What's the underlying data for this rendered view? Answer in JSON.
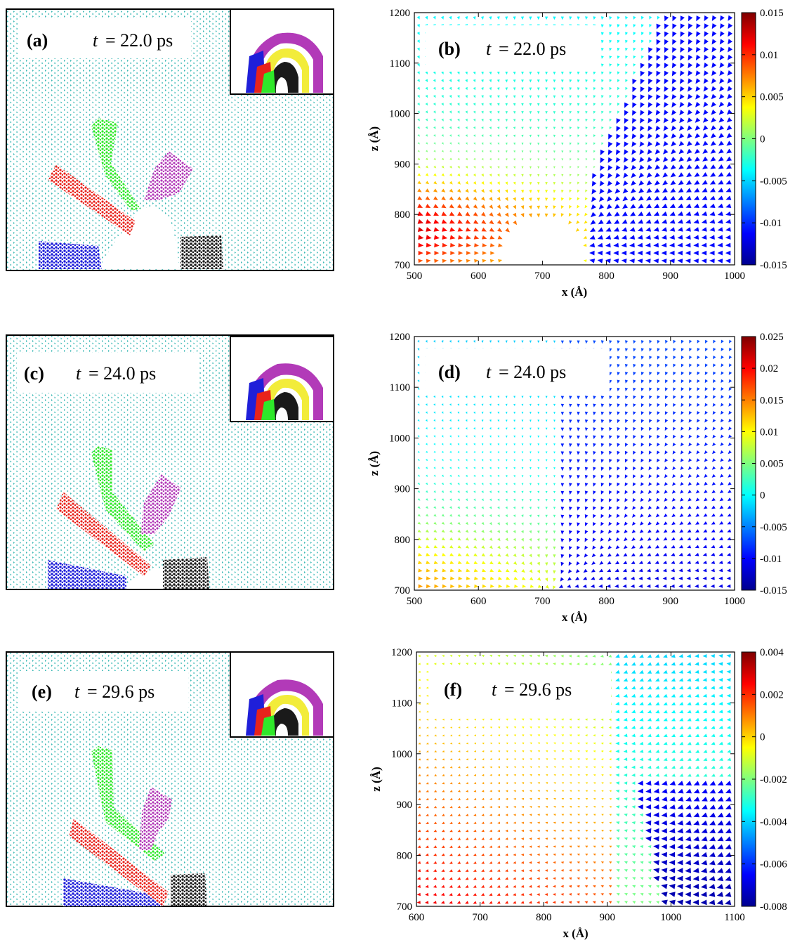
{
  "chart_data": [
    {
      "type": "scatter",
      "panel": "(a)",
      "t_label": "t",
      "t_value": "= 22.0 ps",
      "description_layers": [
        "cyan",
        "red",
        "green",
        "magenta",
        "blue",
        "black"
      ],
      "inset": true
    },
    {
      "type": "quiver",
      "panel": "(b)",
      "t_label": "t",
      "t_value": "= 22.0 ps",
      "xlabel": "x (Å)",
      "ylabel": "z (Å)",
      "xlim": [
        500,
        1000
      ],
      "ylim": [
        700,
        1200
      ],
      "xticks": [
        "500",
        "600",
        "700",
        "800",
        "900",
        "1000"
      ],
      "yticks": [
        "700",
        "800",
        "900",
        "1000",
        "1100",
        "1200"
      ],
      "colorbar": {
        "min": -0.015,
        "max": 0.015,
        "ticks": [
          "0.015",
          "0.01",
          "0.005",
          "0",
          "-0.005",
          "-0.01",
          "-0.015"
        ]
      }
    },
    {
      "type": "scatter",
      "panel": "(c)",
      "t_label": "t",
      "t_value": "= 24.0 ps",
      "inset": true
    },
    {
      "type": "quiver",
      "panel": "(d)",
      "t_label": "t",
      "t_value": "= 24.0 ps",
      "xlabel": "x (Å)",
      "ylabel": "z (Å)",
      "xlim": [
        500,
        1000
      ],
      "ylim": [
        700,
        1200
      ],
      "xticks": [
        "500",
        "600",
        "700",
        "800",
        "900",
        "1000"
      ],
      "yticks": [
        "700",
        "800",
        "900",
        "1000",
        "1100",
        "1200"
      ],
      "colorbar": {
        "min": -0.015,
        "max": 0.025,
        "ticks": [
          "0.025",
          "0.02",
          "0.015",
          "0.01",
          "0.005",
          "0",
          "-0.005",
          "-0.01",
          "-0.015"
        ]
      }
    },
    {
      "type": "scatter",
      "panel": "(e)",
      "t_label": "t",
      "t_value": "= 29.6 ps",
      "inset": true
    },
    {
      "type": "quiver",
      "panel": "(f)",
      "t_label": "t",
      "t_value": "= 29.6 ps",
      "xlabel": "x (Å)",
      "ylabel": "z (Å)",
      "xlim": [
        600,
        1100
      ],
      "ylim": [
        700,
        1200
      ],
      "xticks": [
        "600",
        "700",
        "800",
        "900",
        "1000",
        "1100"
      ],
      "yticks": [
        "700",
        "800",
        "900",
        "1000",
        "1100",
        "1200"
      ],
      "colorbar": {
        "min": -0.008,
        "max": 0.004,
        "ticks": [
          "0.004",
          "0.002",
          "0",
          "-0.002",
          "-0.004",
          "-0.006",
          "-0.008"
        ]
      }
    }
  ],
  "colors": {
    "atoms": "#3cb9b5",
    "red": "#e8231c",
    "green": "#2fe82a",
    "magenta": "#b23ab8",
    "blue": "#1f1fd9",
    "black": "#1a1a1a",
    "yellow": "#f2ec3a"
  }
}
